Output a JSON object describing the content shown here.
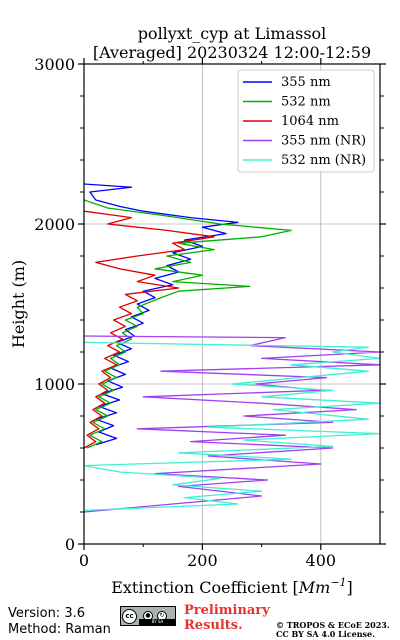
{
  "chart_data": {
    "type": "line",
    "title_line1": "pollyxt_cyp at Limassol",
    "title_line2": "[Averaged] 20230324 12:00-12:59",
    "xlabel_prefix": "Extinction Coefficient [",
    "xlabel_unit": "Mm",
    "xlabel_exp": "−1",
    "xlabel_suffix": "]",
    "ylabel": "Height (m)",
    "xlim": [
      0,
      500
    ],
    "ylim": [
      0,
      3000
    ],
    "xticks": [
      0,
      200,
      400
    ],
    "xtick_labels": [
      "0",
      "200",
      "400"
    ],
    "yticks": [
      0,
      1000,
      2000,
      3000
    ],
    "ytick_labels": [
      "0",
      "1000",
      "2000",
      "3000"
    ],
    "grid": true,
    "legend_position": "top-right",
    "series": [
      {
        "name": "355 nm",
        "color": "#0000ff",
        "points": [
          [
            20,
            620
          ],
          [
            55,
            660
          ],
          [
            25,
            700
          ],
          [
            50,
            740
          ],
          [
            20,
            780
          ],
          [
            55,
            820
          ],
          [
            25,
            860
          ],
          [
            60,
            900
          ],
          [
            30,
            940
          ],
          [
            65,
            980
          ],
          [
            40,
            1020
          ],
          [
            70,
            1060
          ],
          [
            45,
            1100
          ],
          [
            75,
            1140
          ],
          [
            50,
            1180
          ],
          [
            80,
            1220
          ],
          [
            55,
            1260
          ],
          [
            85,
            1300
          ],
          [
            70,
            1340
          ],
          [
            100,
            1380
          ],
          [
            80,
            1420
          ],
          [
            110,
            1460
          ],
          [
            90,
            1500
          ],
          [
            120,
            1540
          ],
          [
            100,
            1580
          ],
          [
            150,
            1620
          ],
          [
            120,
            1660
          ],
          [
            160,
            1700
          ],
          [
            140,
            1740
          ],
          [
            180,
            1780
          ],
          [
            150,
            1820
          ],
          [
            200,
            1860
          ],
          [
            170,
            1900
          ],
          [
            240,
            1940
          ],
          [
            200,
            1980
          ],
          [
            260,
            2010
          ],
          [
            180,
            2040
          ],
          [
            100,
            2080
          ],
          [
            60,
            2110
          ],
          [
            20,
            2150
          ],
          [
            10,
            2200
          ],
          [
            80,
            2230
          ],
          [
            0,
            2250
          ]
        ]
      },
      {
        "name": "532 nm",
        "color": "#00b000",
        "points": [
          [
            5,
            600
          ],
          [
            30,
            640
          ],
          [
            10,
            680
          ],
          [
            35,
            720
          ],
          [
            15,
            760
          ],
          [
            40,
            800
          ],
          [
            20,
            840
          ],
          [
            45,
            880
          ],
          [
            25,
            920
          ],
          [
            50,
            960
          ],
          [
            30,
            1000
          ],
          [
            55,
            1040
          ],
          [
            35,
            1080
          ],
          [
            60,
            1120
          ],
          [
            45,
            1160
          ],
          [
            70,
            1200
          ],
          [
            55,
            1240
          ],
          [
            80,
            1280
          ],
          [
            65,
            1320
          ],
          [
            90,
            1360
          ],
          [
            70,
            1400
          ],
          [
            100,
            1440
          ],
          [
            90,
            1480
          ],
          [
            130,
            1540
          ],
          [
            160,
            1580
          ],
          [
            280,
            1610
          ],
          [
            150,
            1640
          ],
          [
            200,
            1680
          ],
          [
            120,
            1720
          ],
          [
            180,
            1760
          ],
          [
            140,
            1800
          ],
          [
            220,
            1840
          ],
          [
            160,
            1880
          ],
          [
            300,
            1920
          ],
          [
            350,
            1960
          ],
          [
            230,
            2000
          ],
          [
            140,
            2050
          ],
          [
            40,
            2100
          ],
          [
            0,
            2150
          ]
        ]
      },
      {
        "name": "1064 nm",
        "color": "#e00000",
        "points": [
          [
            0,
            600
          ],
          [
            20,
            640
          ],
          [
            5,
            680
          ],
          [
            25,
            720
          ],
          [
            10,
            760
          ],
          [
            30,
            800
          ],
          [
            15,
            840
          ],
          [
            35,
            880
          ],
          [
            20,
            920
          ],
          [
            40,
            960
          ],
          [
            25,
            1000
          ],
          [
            45,
            1040
          ],
          [
            30,
            1080
          ],
          [
            55,
            1120
          ],
          [
            35,
            1160
          ],
          [
            60,
            1200
          ],
          [
            40,
            1240
          ],
          [
            65,
            1280
          ],
          [
            45,
            1320
          ],
          [
            70,
            1360
          ],
          [
            50,
            1400
          ],
          [
            80,
            1440
          ],
          [
            60,
            1480
          ],
          [
            90,
            1520
          ],
          [
            70,
            1560
          ],
          [
            160,
            1600
          ],
          [
            90,
            1640
          ],
          [
            120,
            1680
          ],
          [
            60,
            1720
          ],
          [
            20,
            1760
          ],
          [
            90,
            1800
          ],
          [
            170,
            1840
          ],
          [
            150,
            1880
          ],
          [
            220,
            1920
          ],
          [
            140,
            1960
          ],
          [
            40,
            2000
          ],
          [
            80,
            2040
          ],
          [
            0,
            2080
          ]
        ]
      },
      {
        "name": "355 nm (NR)",
        "color": "#a040f0",
        "points": [
          [
            0,
            200
          ],
          [
            150,
            250
          ],
          [
            300,
            300
          ],
          [
            160,
            360
          ],
          [
            310,
            400
          ],
          [
            120,
            440
          ],
          [
            400,
            500
          ],
          [
            210,
            550
          ],
          [
            420,
            600
          ],
          [
            180,
            640
          ],
          [
            340,
            680
          ],
          [
            90,
            720
          ],
          [
            420,
            760
          ],
          [
            270,
            800
          ],
          [
            460,
            840
          ],
          [
            300,
            880
          ],
          [
            100,
            920
          ],
          [
            400,
            960
          ],
          [
            290,
            1000
          ],
          [
            410,
            1040
          ],
          [
            130,
            1080
          ],
          [
            500,
            1120
          ],
          [
            300,
            1160
          ],
          [
            500,
            1200
          ],
          [
            280,
            1240
          ],
          [
            340,
            1290
          ],
          [
            0,
            1300
          ]
        ]
      },
      {
        "name": "532 nm (NR)",
        "color": "#40f0d0",
        "points": [
          [
            0,
            210
          ],
          [
            260,
            250
          ],
          [
            170,
            290
          ],
          [
            300,
            330
          ],
          [
            150,
            370
          ],
          [
            230,
            410
          ],
          [
            60,
            450
          ],
          [
            0,
            490
          ],
          [
            350,
            530
          ],
          [
            160,
            570
          ],
          [
            420,
            610
          ],
          [
            270,
            650
          ],
          [
            500,
            690
          ],
          [
            210,
            730
          ],
          [
            480,
            780
          ],
          [
            320,
            840
          ],
          [
            500,
            880
          ],
          [
            300,
            920
          ],
          [
            420,
            960
          ],
          [
            250,
            1000
          ],
          [
            480,
            1080
          ],
          [
            350,
            1120
          ],
          [
            500,
            1160
          ],
          [
            420,
            1200
          ],
          [
            480,
            1230
          ],
          [
            0,
            1260
          ]
        ]
      }
    ]
  },
  "footer": {
    "version": "Version: 3.6",
    "method": "Method: Raman",
    "badge_cc": "cc",
    "badge_strip": "BY  SA",
    "preliminary_line1": "Preliminary",
    "preliminary_line2": "Results.",
    "copyright_line1": "© TROPOS & ECoE 2023.",
    "copyright_line2": "CC BY SA 4.0 License."
  },
  "icons": {
    "cc_badge": "creative-commons-by-sa-badge"
  }
}
